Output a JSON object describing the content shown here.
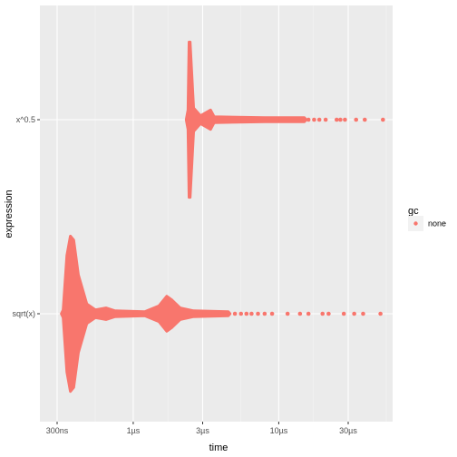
{
  "chart_data": {
    "type": "scatter",
    "xlabel": "time",
    "ylabel": "expression",
    "x_scale": "log10",
    "x_ticks": [
      {
        "value": 3e-07,
        "label": "300ns"
      },
      {
        "value": 1e-06,
        "label": "1µs"
      },
      {
        "value": 3e-06,
        "label": "3µs"
      },
      {
        "value": 1e-05,
        "label": "10µs"
      },
      {
        "value": 3e-05,
        "label": "30µs"
      }
    ],
    "categories": [
      "sqrt(x)",
      "x^0.5"
    ],
    "legend": {
      "title": "gc",
      "items": [
        {
          "label": "none",
          "color": "#F8766D"
        }
      ],
      "position": "right"
    },
    "grid": true,
    "series": [
      {
        "category": "x^0.5",
        "color": "#F8766D",
        "violin_profile": [
          {
            "t": 2.38e-06,
            "w": 0.05
          },
          {
            "t": 2.42e-06,
            "w": 0.4
          },
          {
            "t": 2.46e-06,
            "w": 0.4
          },
          {
            "t": 2.5e-06,
            "w": 0.3
          },
          {
            "t": 2.6e-06,
            "w": 0.06
          },
          {
            "t": 2.9e-06,
            "w": 0.02
          },
          {
            "t": 3.4e-06,
            "w": 0.05
          },
          {
            "t": 3.6e-06,
            "w": 0.015
          },
          {
            "t": 8e-06,
            "w": 0.01
          },
          {
            "t": 1.5e-05,
            "w": 0.008
          }
        ],
        "outliers": [
          1.6e-05,
          1.75e-05,
          1.9e-05,
          2.1e-05,
          2.5e-05,
          2.65e-05,
          2.85e-05,
          3.4e-05,
          3.9e-05,
          5.2e-05
        ]
      },
      {
        "category": "sqrt(x)",
        "color": "#F8766D",
        "violin_profile": [
          {
            "t": 3.3e-07,
            "w": 0.02
          },
          {
            "t": 3.5e-07,
            "w": 0.3
          },
          {
            "t": 3.7e-07,
            "w": 0.4
          },
          {
            "t": 3.9e-07,
            "w": 0.38
          },
          {
            "t": 4.2e-07,
            "w": 0.2
          },
          {
            "t": 4.8e-07,
            "w": 0.05
          },
          {
            "t": 5.5e-07,
            "w": 0.02
          },
          {
            "t": 6.5e-07,
            "w": 0.03
          },
          {
            "t": 7.5e-07,
            "w": 0.015
          },
          {
            "t": 1.2e-06,
            "w": 0.01
          },
          {
            "t": 1.5e-06,
            "w": 0.04
          },
          {
            "t": 1.7e-06,
            "w": 0.09
          },
          {
            "t": 1.85e-06,
            "w": 0.07
          },
          {
            "t": 2.1e-06,
            "w": 0.03
          },
          {
            "t": 2.6e-06,
            "w": 0.015
          },
          {
            "t": 4.5e-06,
            "w": 0.008
          }
        ],
        "outliers": [
          5e-06,
          5.5e-06,
          6e-06,
          6.5e-06,
          7.2e-06,
          8e-06,
          9e-06,
          1.15e-05,
          1.4e-05,
          1.6e-05,
          2e-05,
          2.2e-05,
          2.8e-05,
          3.3e-05,
          3.8e-05,
          5e-05
        ]
      }
    ]
  }
}
